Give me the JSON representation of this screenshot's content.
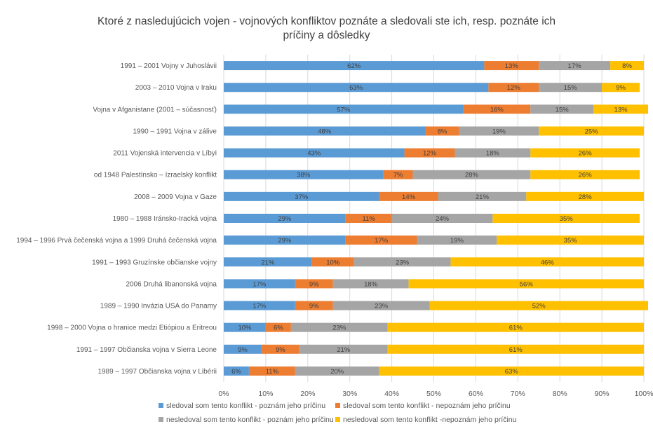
{
  "title_line1": "Ktoré z nasledujúcich vojen - vojnových konfliktov poznáte a sledovali ste ich, resp. poznáte ich",
  "title_line2": "príčiny a dôsledky",
  "chart_data": {
    "type": "bar",
    "orientation": "horizontal",
    "stacked": "percent",
    "title": "Ktoré z nasledujúcich vojen - vojnových konfliktov poznáte a sledovali ste ich, resp. poznáte ich príčiny a dôsledky",
    "xlim": [
      0,
      100
    ],
    "xticks": [
      "0%",
      "10%",
      "20%",
      "30%",
      "40%",
      "50%",
      "60%",
      "70%",
      "80%",
      "90%",
      "100%"
    ],
    "grid": "vertical",
    "legend_position": "bottom",
    "categories": [
      "1991 – 2001 Vojny v Juhoslávii",
      "2003 – 2010 Vojna v Iraku",
      "Vojna v Afganistane (2001 – súčasnosť)",
      "1990 – 1991 Vojna v zálive",
      "2011 Vojenská intervencia v Líbyi",
      "od 1948 Palestínsko – Izraelský konflikt",
      "2008 – 2009 Vojna v Gaze",
      "1980 – 1988 Iránsko-Iracká vojna",
      "1994 – 1996 Prvá čečenská vojna a 1999 Druhá čečenská vojna",
      "1991 – 1993 Gruzínske občianske vojny",
      "2006 Druhá libanonská vojna",
      "1989 – 1990 Invázia USA do Panamy",
      "1998 – 2000 Vojna o hranice medzi Etiópiou a Eritreou",
      "1991 – 1997 Občianska vojna v Sierra Leone",
      "1989 – 1997 Občianska vojna v Libérii"
    ],
    "series": [
      {
        "name": "sledoval som tento konflikt - poznám jeho príčinu",
        "color": "#5B9BD5",
        "values": [
          62,
          63,
          57,
          48,
          43,
          38,
          37,
          29,
          29,
          21,
          17,
          17,
          10,
          9,
          6
        ]
      },
      {
        "name": "sledoval som tento konflikt - nepoznám jeho príčinu",
        "color": "#ED7D31",
        "values": [
          13,
          12,
          16,
          8,
          12,
          7,
          14,
          11,
          17,
          10,
          9,
          9,
          6,
          9,
          11
        ]
      },
      {
        "name": "nesledoval som tento konflikt - poznám jeho príčinu",
        "color": "#A5A5A5",
        "values": [
          17,
          15,
          15,
          19,
          18,
          28,
          21,
          24,
          19,
          23,
          18,
          23,
          23,
          21,
          20
        ]
      },
      {
        "name": "nesledoval som tento konflikt -nepoznám jeho príčinu",
        "color": "#FFC000",
        "values": [
          8,
          9,
          13,
          25,
          26,
          26,
          28,
          35,
          35,
          46,
          56,
          52,
          61,
          61,
          63
        ]
      }
    ]
  }
}
